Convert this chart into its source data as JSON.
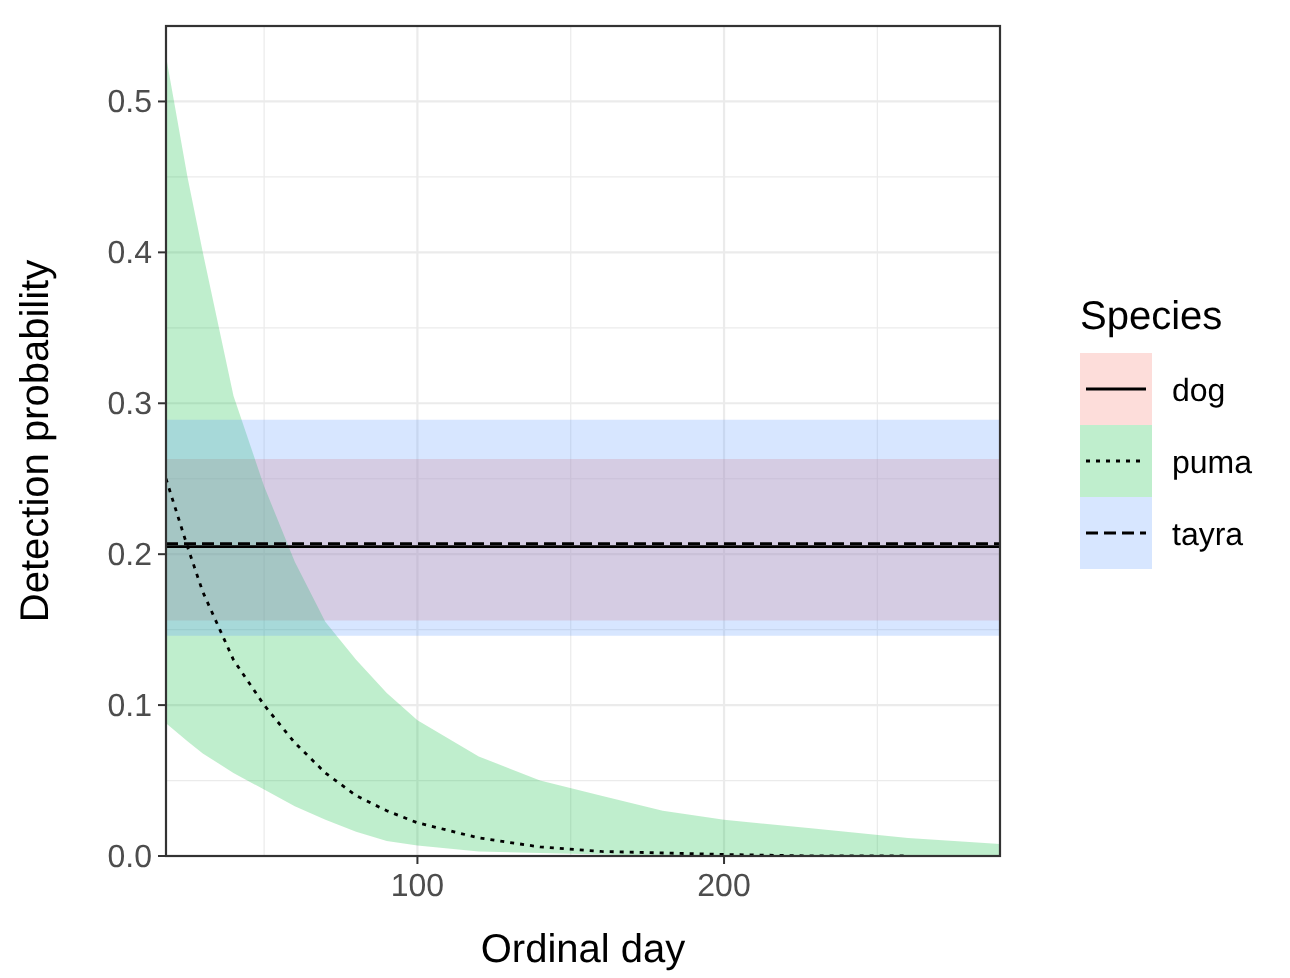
{
  "chart_data": {
    "type": "line",
    "xlabel": "Ordinal day",
    "ylabel": "Detection probability",
    "legend_title": "Species",
    "legend": "right",
    "grid": true,
    "xlim": [
      18,
      290
    ],
    "xticks": [
      100,
      200
    ],
    "ylim": [
      0,
      0.55
    ],
    "yticks": [
      {
        "value": 0,
        "label": "0.0"
      },
      0.1,
      0.2,
      0.3,
      0.4,
      0.5
    ],
    "series": [
      {
        "name": "dog",
        "color": "#000000",
        "line_style": "solid",
        "x": [
          18,
          290
        ],
        "values": [
          0.205,
          0.205
        ],
        "lower": [
          0.156,
          0.156
        ],
        "upper": [
          0.263,
          0.263
        ]
      },
      {
        "name": "puma",
        "color": "#000000",
        "line_style": "dotted",
        "x": [
          18,
          25,
          30,
          40,
          50,
          60,
          70,
          80,
          90,
          100,
          120,
          140,
          160,
          180,
          200,
          230,
          260,
          290
        ],
        "values": [
          0.25,
          0.205,
          0.175,
          0.13,
          0.1,
          0.075,
          0.055,
          0.04,
          0.03,
          0.022,
          0.012,
          0.006,
          0.003,
          0.002,
          0.001,
          0,
          0,
          null
        ],
        "lower": [
          0.088,
          0.076,
          0.068,
          0.055,
          0.044,
          0.033,
          0.024,
          0.016,
          0.01,
          0.007,
          0.003,
          0.002,
          0.001,
          0,
          0,
          0,
          0,
          0
        ],
        "upper": [
          0.53,
          0.45,
          0.4,
          0.305,
          0.245,
          0.195,
          0.155,
          0.13,
          0.108,
          0.09,
          0.066,
          0.05,
          0.04,
          0.03,
          0.024,
          0.018,
          0.012,
          0.008
        ]
      },
      {
        "name": "tayra",
        "color": "#000000",
        "line_style": "dashed",
        "x": [
          18,
          290
        ],
        "values": [
          0.207,
          0.207
        ],
        "lower": [
          0.146,
          0.146
        ],
        "upper": [
          0.289,
          0.289
        ]
      }
    ]
  }
}
